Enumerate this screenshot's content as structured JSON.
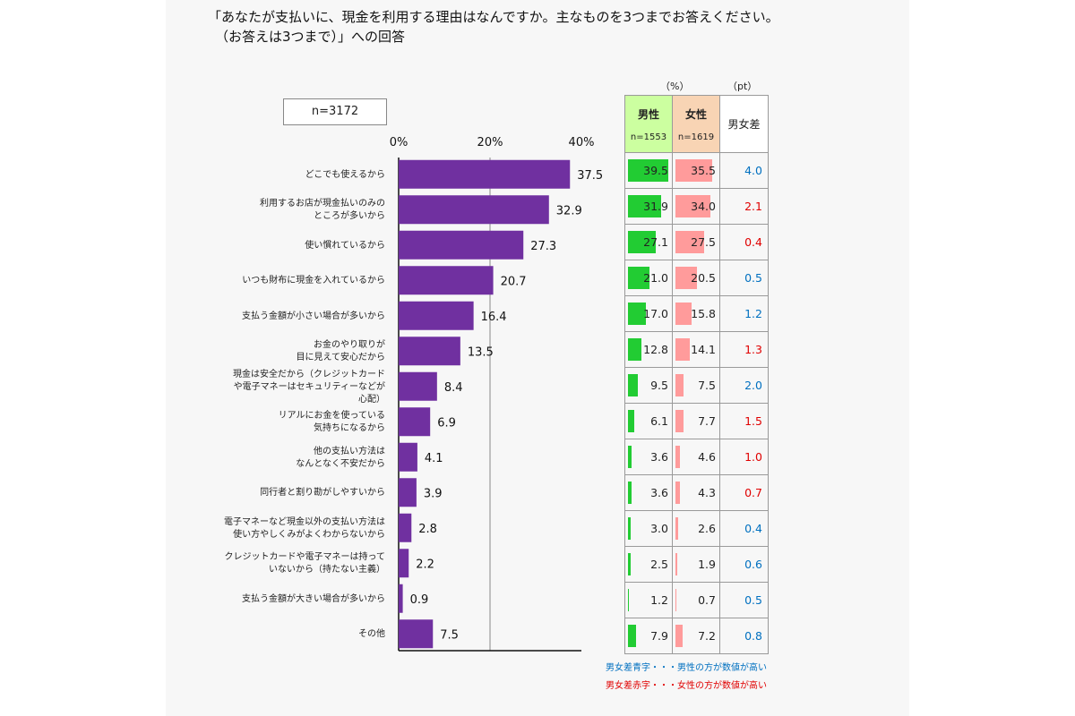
{
  "title_line1": "「あなたが支払いに、現金を利用する理由はなんですか。主なものを3つまでお答えください。",
  "title_line2": "（お答えは3つまで）」への回答",
  "n_label": "n=3172",
  "table_unit_pct": "（%）",
  "table_unit_pt": "（pt）",
  "table_header": {
    "male": "男性",
    "male_n": "n=1553",
    "female": "女性",
    "female_n": "n=1619",
    "diff": "男女差"
  },
  "notes": {
    "blue": "男女差青字・・・男性の方が数値が高い",
    "red": "男女差赤字・・・女性の方が数値が高い"
  },
  "colors": {
    "bar": "#7030a0",
    "male_bar": "#22cc33",
    "female_bar": "#ff9b9b",
    "blue": "#0070c0",
    "red": "#e00000"
  },
  "chart_data": {
    "type": "bar",
    "orientation": "horizontal",
    "xlim": [
      0,
      40
    ],
    "xticks": [
      "0%",
      "20%",
      "40%"
    ],
    "categories": [
      "どこでも使えるから",
      "利用するお店が現金払いのみの\nところが多いから",
      "使い慣れているから",
      "いつも財布に現金を入れているから",
      "支払う金額が小さい場合が多いから",
      "お金のやり取りが\n目に見えて安心だから",
      "現金は安全だから（クレジットカード\nや電子マネーはセキュリティーなどが\n心配）",
      "リアルにお金を使っている\n気持ちになるから",
      "他の支払い方法は\nなんとなく不安だから",
      "同行者と割り勘がしやすいから",
      "電子マネーなど現金以外の支払い方法は\n使い方やしくみがよくわからないから",
      "クレジットカードや電子マネーは持って\nいないから（持たない主義）",
      "支払う金額が大きい場合が多いから",
      "その他"
    ],
    "values": [
      37.5,
      32.9,
      27.3,
      20.7,
      16.4,
      13.5,
      8.4,
      6.9,
      4.1,
      3.9,
      2.8,
      2.2,
      0.9,
      7.5
    ],
    "value_labels": [
      "37.5",
      "32.9",
      "27.3",
      "20.7",
      "16.4",
      "13.5",
      "8.4",
      "6.9",
      "4.1",
      "3.9",
      "2.8",
      "2.2",
      "0.9",
      "7.5"
    ],
    "table": {
      "male": [
        "39.5",
        "31.9",
        "27.1",
        "21.0",
        "17.0",
        "12.8",
        "9.5",
        "6.1",
        "3.6",
        "3.6",
        "3.0",
        "2.5",
        "1.2",
        "7.9"
      ],
      "female": [
        "35.5",
        "34.0",
        "27.5",
        "20.5",
        "15.8",
        "14.1",
        "7.5",
        "7.7",
        "4.6",
        "4.3",
        "2.6",
        "1.9",
        "0.7",
        "7.2"
      ],
      "diff": [
        "4.0",
        "2.1",
        "0.4",
        "0.5",
        "1.2",
        "1.3",
        "2.0",
        "1.5",
        "1.0",
        "0.7",
        "0.4",
        "0.6",
        "0.5",
        "0.8"
      ],
      "diff_color": [
        "blue",
        "red",
        "red",
        "blue",
        "blue",
        "red",
        "blue",
        "red",
        "red",
        "red",
        "blue",
        "blue",
        "blue",
        "blue"
      ]
    }
  }
}
